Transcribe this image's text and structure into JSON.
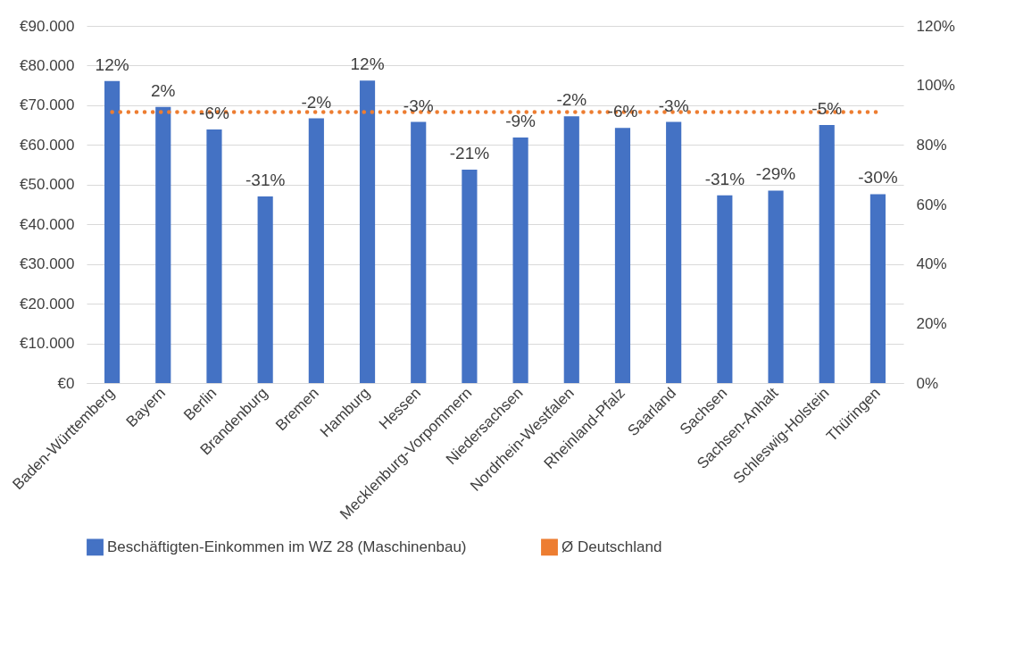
{
  "chart_data": {
    "type": "bar",
    "categories": [
      "Baden-Württemberg",
      "Bayern",
      "Berlin",
      "Brandenburg",
      "Bremen",
      "Hamburg",
      "Hessen",
      "Mecklenburg-Vorpommern",
      "Niedersachsen",
      "Nordrhein-Westfalen",
      "Rheinland-Pfalz",
      "Saarland",
      "Sachsen",
      "Sachsen-Anhalt",
      "Schleswig-Holstein",
      "Thüringen"
    ],
    "series": [
      {
        "name": "Beschäftigten-Einkommen im WZ 28 (Maschinenbau)",
        "color": "#4472c4",
        "values": [
          76100,
          69600,
          63900,
          47000,
          66700,
          76200,
          65800,
          53800,
          61900,
          67200,
          64300,
          65800,
          47300,
          48500,
          65000,
          47600
        ]
      },
      {
        "name": "Ø Deutschland",
        "type": "line",
        "color": "#ed7d31",
        "line_style": "dotted",
        "values": [
          68300,
          68300,
          68300,
          68300,
          68300,
          68300,
          68300,
          68300,
          68300,
          68300,
          68300,
          68300,
          68300,
          68300,
          68300,
          68300
        ]
      }
    ],
    "ylim": [
      0,
      90000
    ],
    "yticks": [
      {
        "value": 0,
        "label": "€0"
      },
      {
        "value": 10000,
        "label": "€10.000"
      },
      {
        "value": 20000,
        "label": "€20.000"
      },
      {
        "value": 30000,
        "label": "€30.000"
      },
      {
        "value": 40000,
        "label": "€40.000"
      },
      {
        "value": 50000,
        "label": "€50.000"
      },
      {
        "value": 60000,
        "label": "€60.000"
      },
      {
        "value": 70000,
        "label": "€70.000"
      },
      {
        "value": 80000,
        "label": "€80.000"
      },
      {
        "value": 90000,
        "label": "€90.000"
      }
    ],
    "y2lim": [
      0,
      120
    ],
    "y2ticks": [
      {
        "value": 0,
        "label": "0%"
      },
      {
        "value": 20,
        "label": "20%"
      },
      {
        "value": 40,
        "label": "40%"
      },
      {
        "value": 60,
        "label": "60%"
      },
      {
        "value": 80,
        "label": "80%"
      },
      {
        "value": 100,
        "label": "100%"
      },
      {
        "value": 120,
        "label": "120%"
      }
    ],
    "annotations": [
      {
        "text": "12%",
        "x": "Baden-Württemberg",
        "y": 76100
      },
      {
        "text": "2%",
        "x": "Bayern",
        "y": 69600
      },
      {
        "text": "-6%",
        "x": "Berlin",
        "y": 63900
      },
      {
        "text": "-31%",
        "x": "Brandenburg",
        "y": 47000
      },
      {
        "text": "-2%",
        "x": "Bremen",
        "y": 66700
      },
      {
        "text": "12%",
        "x": "Hamburg",
        "y": 76200
      },
      {
        "text": "-3%",
        "x": "Hessen",
        "y": 65800
      },
      {
        "text": "-21%",
        "x": "Mecklenburg-Vorpommern",
        "y": 53800
      },
      {
        "text": "-9%",
        "x": "Niedersachsen",
        "y": 61900
      },
      {
        "text": "-2%",
        "x": "Nordrhein-Westfalen",
        "y": 67200
      },
      {
        "text": "-6%",
        "x": "Rheinland-Pfalz",
        "y": 64300
      },
      {
        "text": "-3%",
        "x": "Saarland",
        "y": 65800
      },
      {
        "text": "-31%",
        "x": "Sachsen",
        "y": 47300
      },
      {
        "text": "-29%",
        "x": "Sachsen-Anhalt",
        "y": 48500
      },
      {
        "text": "-5%",
        "x": "Schleswig-Holstein",
        "y": 65000
      },
      {
        "text": "-30%",
        "x": "Thüringen",
        "y": 47600
      }
    ],
    "grid": "y",
    "legend": "bottom"
  }
}
